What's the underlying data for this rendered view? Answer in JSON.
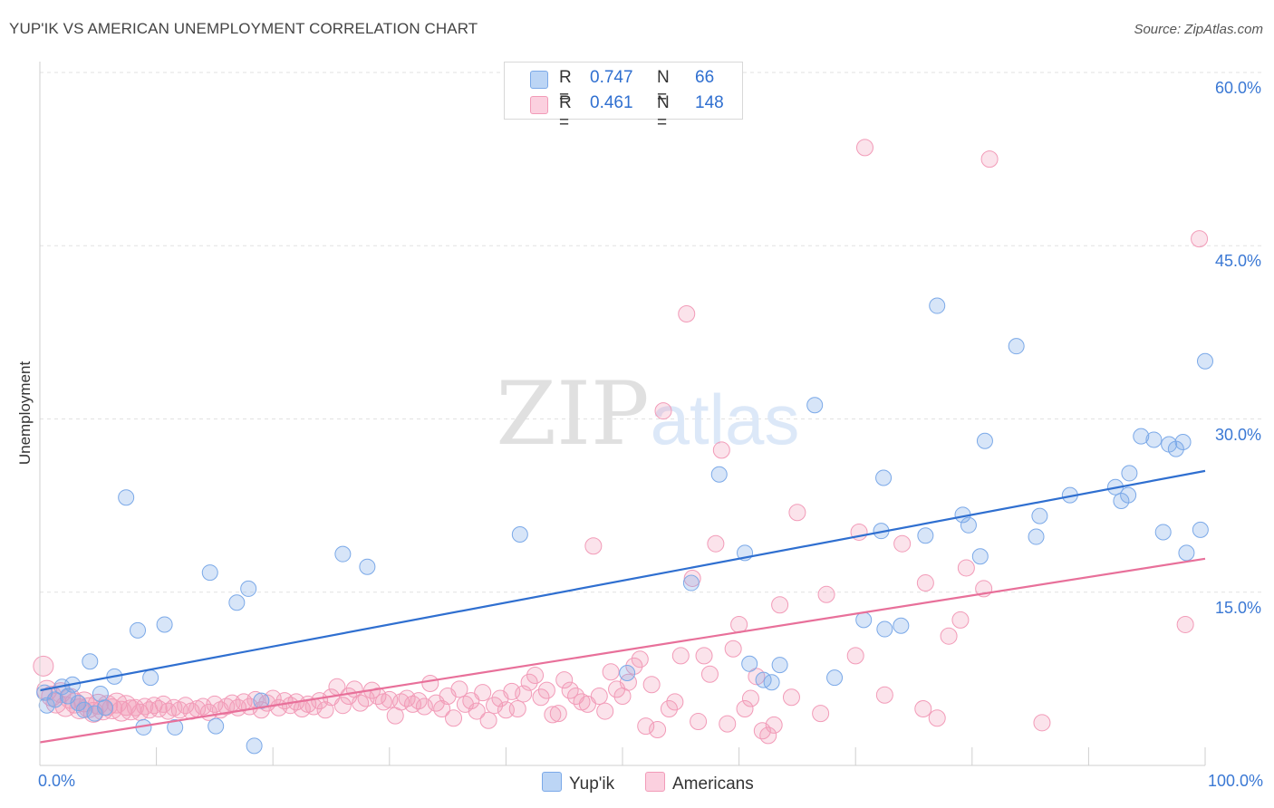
{
  "title": "YUP'IK VS AMERICAN UNEMPLOYMENT CORRELATION CHART",
  "source": "Source: ZipAtlas.com",
  "watermark": {
    "zip": "ZIP",
    "atlas": "atlas"
  },
  "legend": {
    "rows": [
      {
        "r_label": "R =",
        "r_value": "0.747",
        "n_label": "N =",
        "n_value": "66"
      },
      {
        "r_label": "R =",
        "r_value": "0.461",
        "n_label": "N =",
        "n_value": "148"
      }
    ]
  },
  "colors": {
    "yupik": "#7ba9e8",
    "yupik_line": "#2f6fd0",
    "americans": "#f29bb8",
    "americans_line": "#e8709a",
    "tick": "#3a78d4"
  },
  "chart_data": {
    "type": "scatter",
    "title": "YUP'IK VS AMERICAN UNEMPLOYMENT CORRELATION CHART",
    "xlabel": "",
    "ylabel": "Unemployment",
    "xlim": [
      0,
      100
    ],
    "ylim": [
      0,
      60
    ],
    "y_ticks": [
      {
        "v": 15,
        "label": "15.0%"
      },
      {
        "v": 30,
        "label": "30.0%"
      },
      {
        "v": 45,
        "label": "45.0%"
      },
      {
        "v": 60,
        "label": "60.0%"
      }
    ],
    "x_ticks": [
      {
        "v": 0,
        "label": "0.0%"
      },
      {
        "v": 100,
        "label": "100.0%"
      }
    ],
    "grid": true,
    "legend_position": "top-center",
    "series": [
      {
        "name": "Yup'ik",
        "r": 0.747,
        "n": 66,
        "trend": [
          [
            0,
            6.5
          ],
          [
            100,
            25.5
          ]
        ],
        "points": [
          [
            0.4,
            6.3
          ],
          [
            0.6,
            5.2
          ],
          [
            1.3,
            5.7
          ],
          [
            1.9,
            6.8
          ],
          [
            2.4,
            6.0
          ],
          [
            2.8,
            7.0
          ],
          [
            3.3,
            5.4
          ],
          [
            3.8,
            4.8
          ],
          [
            4.3,
            9.0
          ],
          [
            4.7,
            4.5
          ],
          [
            5.2,
            6.2
          ],
          [
            5.6,
            5.0
          ],
          [
            6.4,
            7.7
          ],
          [
            7.4,
            23.2
          ],
          [
            8.4,
            11.7
          ],
          [
            8.9,
            3.3
          ],
          [
            9.5,
            7.6
          ],
          [
            10.7,
            12.2
          ],
          [
            11.6,
            3.3
          ],
          [
            14.6,
            16.7
          ],
          [
            15.1,
            3.4
          ],
          [
            16.9,
            14.1
          ],
          [
            17.9,
            15.3
          ],
          [
            18.4,
            1.7
          ],
          [
            19.0,
            5.6
          ],
          [
            26.0,
            18.3
          ],
          [
            28.1,
            17.2
          ],
          [
            41.2,
            20.0
          ],
          [
            50.4,
            8.0
          ],
          [
            55.9,
            15.8
          ],
          [
            58.3,
            25.2
          ],
          [
            60.5,
            18.4
          ],
          [
            60.9,
            8.8
          ],
          [
            62.1,
            7.4
          ],
          [
            62.8,
            7.2
          ],
          [
            63.5,
            8.7
          ],
          [
            66.5,
            31.2
          ],
          [
            68.2,
            7.6
          ],
          [
            70.7,
            12.6
          ],
          [
            72.2,
            20.3
          ],
          [
            72.4,
            24.9
          ],
          [
            72.5,
            11.8
          ],
          [
            73.9,
            12.1
          ],
          [
            76.0,
            19.9
          ],
          [
            77.0,
            39.8
          ],
          [
            79.2,
            21.7
          ],
          [
            79.7,
            20.8
          ],
          [
            80.7,
            18.1
          ],
          [
            81.1,
            28.1
          ],
          [
            83.8,
            36.3
          ],
          [
            85.5,
            19.8
          ],
          [
            85.8,
            21.6
          ],
          [
            88.4,
            23.4
          ],
          [
            92.3,
            24.1
          ],
          [
            92.8,
            22.9
          ],
          [
            93.4,
            23.4
          ],
          [
            93.5,
            25.3
          ],
          [
            94.5,
            28.5
          ],
          [
            95.6,
            28.2
          ],
          [
            96.4,
            20.2
          ],
          [
            96.9,
            27.8
          ],
          [
            97.5,
            27.4
          ],
          [
            98.1,
            28.0
          ],
          [
            98.4,
            18.4
          ],
          [
            99.6,
            20.4
          ],
          [
            100.0,
            35.0
          ]
        ]
      },
      {
        "name": "Americans",
        "r": 0.461,
        "n": 148,
        "trend": [
          [
            0,
            2.0
          ],
          [
            100,
            17.9
          ]
        ],
        "points": [
          [
            0.3,
            8.6
          ],
          [
            0.6,
            6.5
          ],
          [
            1.0,
            6.0
          ],
          [
            1.4,
            5.4
          ],
          [
            1.8,
            6.3
          ],
          [
            2.2,
            5.1
          ],
          [
            2.6,
            5.8
          ],
          [
            3.0,
            5.4
          ],
          [
            3.4,
            4.9
          ],
          [
            3.8,
            5.5
          ],
          [
            4.2,
            5.0
          ],
          [
            4.6,
            4.6
          ],
          [
            5.0,
            5.3
          ],
          [
            5.4,
            4.8
          ],
          [
            5.8,
            5.2
          ],
          [
            6.2,
            4.9
          ],
          [
            6.6,
            5.4
          ],
          [
            7.0,
            4.7
          ],
          [
            7.4,
            5.2
          ],
          [
            7.8,
            4.8
          ],
          [
            8.2,
            5.0
          ],
          [
            8.6,
            4.6
          ],
          [
            9.0,
            5.1
          ],
          [
            9.4,
            4.8
          ],
          [
            9.8,
            5.2
          ],
          [
            10.2,
            4.9
          ],
          [
            10.6,
            5.3
          ],
          [
            11.0,
            4.7
          ],
          [
            11.5,
            5.0
          ],
          [
            12.0,
            4.8
          ],
          [
            12.5,
            5.2
          ],
          [
            13.0,
            4.7
          ],
          [
            13.5,
            4.9
          ],
          [
            14.0,
            5.1
          ],
          [
            14.5,
            4.6
          ],
          [
            15.0,
            5.3
          ],
          [
            15.5,
            4.8
          ],
          [
            16.0,
            5.1
          ],
          [
            16.5,
            5.4
          ],
          [
            17.0,
            5.0
          ],
          [
            17.5,
            5.5
          ],
          [
            18.0,
            5.1
          ],
          [
            18.5,
            5.7
          ],
          [
            19.0,
            4.8
          ],
          [
            19.5,
            5.4
          ],
          [
            20.0,
            5.8
          ],
          [
            20.5,
            5.0
          ],
          [
            21.0,
            5.6
          ],
          [
            21.5,
            5.2
          ],
          [
            22.0,
            5.5
          ],
          [
            22.5,
            4.9
          ],
          [
            23.0,
            5.3
          ],
          [
            23.5,
            5.1
          ],
          [
            24.0,
            5.6
          ],
          [
            24.5,
            4.8
          ],
          [
            25.0,
            5.9
          ],
          [
            25.5,
            6.8
          ],
          [
            26.0,
            5.2
          ],
          [
            26.5,
            6.0
          ],
          [
            27.0,
            6.6
          ],
          [
            27.5,
            5.4
          ],
          [
            28.0,
            5.8
          ],
          [
            28.5,
            6.5
          ],
          [
            29.0,
            6.0
          ],
          [
            29.5,
            5.5
          ],
          [
            30.0,
            5.7
          ],
          [
            30.5,
            4.3
          ],
          [
            31.0,
            5.5
          ],
          [
            31.5,
            5.8
          ],
          [
            32.0,
            5.3
          ],
          [
            32.5,
            5.6
          ],
          [
            33.0,
            5.1
          ],
          [
            33.5,
            7.1
          ],
          [
            34.0,
            5.4
          ],
          [
            34.5,
            4.9
          ],
          [
            35.0,
            6.0
          ],
          [
            35.5,
            4.1
          ],
          [
            36.0,
            6.6
          ],
          [
            36.5,
            5.3
          ],
          [
            37.0,
            5.6
          ],
          [
            37.5,
            4.7
          ],
          [
            38.0,
            6.3
          ],
          [
            38.5,
            3.9
          ],
          [
            39.0,
            5.2
          ],
          [
            39.5,
            5.8
          ],
          [
            40.0,
            4.8
          ],
          [
            40.5,
            6.4
          ],
          [
            41.0,
            4.9
          ],
          [
            41.5,
            6.2
          ],
          [
            42.0,
            7.2
          ],
          [
            42.5,
            7.8
          ],
          [
            43.0,
            5.9
          ],
          [
            43.5,
            6.5
          ],
          [
            44.0,
            4.4
          ],
          [
            44.5,
            4.5
          ],
          [
            45.0,
            7.4
          ],
          [
            45.5,
            6.5
          ],
          [
            46.0,
            6.0
          ],
          [
            46.5,
            5.5
          ],
          [
            47.0,
            5.3
          ],
          [
            47.5,
            19.0
          ],
          [
            48.0,
            6.0
          ],
          [
            48.5,
            4.7
          ],
          [
            49.0,
            8.1
          ],
          [
            49.5,
            6.6
          ],
          [
            50.0,
            6.0
          ],
          [
            50.5,
            7.2
          ],
          [
            51.0,
            8.6
          ],
          [
            51.5,
            9.2
          ],
          [
            52.0,
            3.4
          ],
          [
            52.5,
            7.0
          ],
          [
            53.0,
            3.1
          ],
          [
            53.5,
            30.7
          ],
          [
            54.0,
            4.9
          ],
          [
            54.5,
            5.5
          ],
          [
            55.0,
            9.5
          ],
          [
            55.5,
            39.1
          ],
          [
            56.0,
            16.2
          ],
          [
            56.5,
            3.8
          ],
          [
            57.0,
            9.5
          ],
          [
            57.5,
            7.9
          ],
          [
            58.0,
            19.2
          ],
          [
            58.5,
            27.3
          ],
          [
            59.0,
            3.6
          ],
          [
            59.5,
            10.1
          ],
          [
            60.0,
            12.2
          ],
          [
            60.5,
            4.9
          ],
          [
            61.0,
            5.8
          ],
          [
            61.5,
            7.7
          ],
          [
            62.0,
            3.0
          ],
          [
            62.5,
            2.6
          ],
          [
            63.0,
            3.5
          ],
          [
            63.5,
            13.9
          ],
          [
            64.5,
            5.9
          ],
          [
            65.0,
            21.9
          ],
          [
            67.0,
            4.5
          ],
          [
            67.5,
            14.8
          ],
          [
            70.0,
            9.5
          ],
          [
            70.3,
            20.2
          ],
          [
            70.8,
            53.5
          ],
          [
            72.5,
            6.1
          ],
          [
            74.0,
            19.2
          ],
          [
            75.8,
            4.9
          ],
          [
            76.0,
            15.8
          ],
          [
            77.0,
            4.1
          ],
          [
            78.0,
            11.2
          ],
          [
            79.0,
            12.6
          ],
          [
            79.5,
            17.1
          ],
          [
            81.0,
            15.3
          ],
          [
            81.5,
            52.5
          ],
          [
            86.0,
            3.7
          ],
          [
            98.3,
            12.2
          ],
          [
            99.5,
            45.6
          ]
        ]
      }
    ]
  },
  "bottom_legend": [
    {
      "label": "Yup'ik"
    },
    {
      "label": "Americans"
    }
  ]
}
